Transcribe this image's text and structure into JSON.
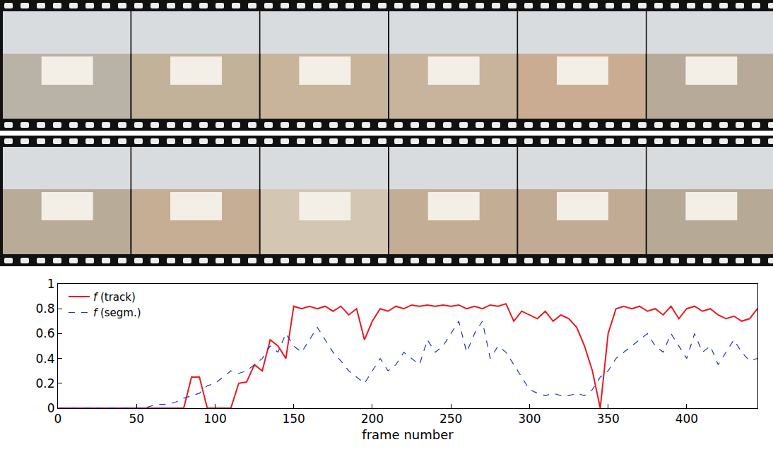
{
  "chart_data": {
    "type": "line",
    "xlabel": "frame number",
    "x": [
      0,
      5,
      10,
      15,
      20,
      25,
      30,
      35,
      40,
      45,
      50,
      55,
      60,
      65,
      70,
      75,
      80,
      85,
      90,
      95,
      100,
      105,
      110,
      115,
      120,
      125,
      130,
      135,
      140,
      145,
      150,
      155,
      160,
      165,
      170,
      175,
      180,
      185,
      190,
      195,
      200,
      205,
      210,
      215,
      220,
      225,
      230,
      235,
      240,
      245,
      250,
      255,
      260,
      265,
      270,
      275,
      280,
      285,
      290,
      295,
      300,
      305,
      310,
      315,
      320,
      325,
      330,
      335,
      340,
      345,
      350,
      355,
      360,
      365,
      370,
      375,
      380,
      385,
      390,
      395,
      400,
      405,
      410,
      415,
      420,
      425,
      430,
      435,
      440,
      445
    ],
    "series": [
      {
        "name": "f (track)",
        "color": "#e8191f",
        "line_style": "solid",
        "values": [
          0,
          0,
          0,
          0,
          0,
          0,
          0,
          0,
          0,
          0,
          0,
          0,
          0,
          0,
          0,
          0,
          0,
          0.25,
          0.25,
          0,
          0,
          0,
          0,
          0.2,
          0.21,
          0.35,
          0.3,
          0.55,
          0.5,
          0.4,
          0.82,
          0.8,
          0.82,
          0.8,
          0.82,
          0.78,
          0.82,
          0.75,
          0.8,
          0.55,
          0.7,
          0.8,
          0.78,
          0.82,
          0.8,
          0.83,
          0.82,
          0.83,
          0.82,
          0.83,
          0.82,
          0.83,
          0.8,
          0.82,
          0.8,
          0.83,
          0.82,
          0.84,
          0.7,
          0.78,
          0.75,
          0.72,
          0.78,
          0.7,
          0.75,
          0.72,
          0.65,
          0.5,
          0.3,
          0,
          0.6,
          0.8,
          0.82,
          0.8,
          0.82,
          0.78,
          0.8,
          0.75,
          0.82,
          0.72,
          0.8,
          0.82,
          0.78,
          0.8,
          0.75,
          0.72,
          0.74,
          0.7,
          0.72,
          0.8
        ]
      },
      {
        "name": "f (segm.)",
        "color": "#1f2fd6",
        "line_style": "dashed",
        "values": [
          0,
          0,
          0,
          0,
          0,
          0,
          0,
          0,
          0,
          0,
          0,
          0,
          0.02,
          0.03,
          0.03,
          0.05,
          0.08,
          0.1,
          0.12,
          0.18,
          0.2,
          0.25,
          0.3,
          0.28,
          0.3,
          0.35,
          0.4,
          0.5,
          0.45,
          0.6,
          0.5,
          0.45,
          0.55,
          0.65,
          0.55,
          0.45,
          0.38,
          0.3,
          0.25,
          0.2,
          0.3,
          0.4,
          0.3,
          0.35,
          0.45,
          0.4,
          0.35,
          0.55,
          0.45,
          0.5,
          0.6,
          0.7,
          0.45,
          0.6,
          0.7,
          0.4,
          0.5,
          0.45,
          0.35,
          0.25,
          0.15,
          0.12,
          0.1,
          0.12,
          0.1,
          0.1,
          0.12,
          0.1,
          0.15,
          0.25,
          0.3,
          0.4,
          0.45,
          0.5,
          0.55,
          0.6,
          0.5,
          0.45,
          0.6,
          0.5,
          0.4,
          0.6,
          0.45,
          0.5,
          0.35,
          0.45,
          0.55,
          0.45,
          0.38,
          0.4
        ]
      }
    ],
    "xlim": [
      0,
      445
    ],
    "ylim": [
      0,
      1
    ],
    "xticks": [
      0,
      50,
      100,
      150,
      200,
      250,
      300,
      350,
      400
    ],
    "yticks": [
      0,
      0.2,
      0.4,
      0.6,
      0.8,
      1
    ],
    "legend": "top-left",
    "grid": false
  }
}
